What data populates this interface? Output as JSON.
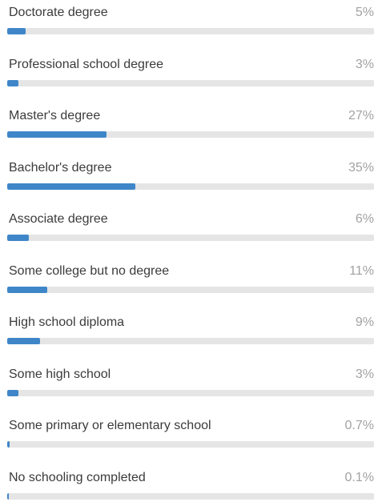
{
  "chart_data": {
    "type": "bar",
    "orientation": "horizontal",
    "bar_color": "#3f86c8",
    "track_color": "#e5e5e5",
    "items": [
      {
        "label": "Doctorate degree",
        "value": 5,
        "display": "5%"
      },
      {
        "label": "Professional school degree",
        "value": 3,
        "display": "3%"
      },
      {
        "label": "Master's degree",
        "value": 27,
        "display": "27%"
      },
      {
        "label": "Bachelor's degree",
        "value": 35,
        "display": "35%"
      },
      {
        "label": "Associate degree",
        "value": 6,
        "display": "6%"
      },
      {
        "label": "Some college but no degree",
        "value": 11,
        "display": "11%"
      },
      {
        "label": "High school diploma",
        "value": 9,
        "display": "9%"
      },
      {
        "label": "Some high school",
        "value": 3,
        "display": "3%"
      },
      {
        "label": "Some primary or elementary school",
        "value": 0.7,
        "display": "0.7%"
      },
      {
        "label": "No schooling completed",
        "value": 0.1,
        "display": "0.1%"
      }
    ]
  }
}
